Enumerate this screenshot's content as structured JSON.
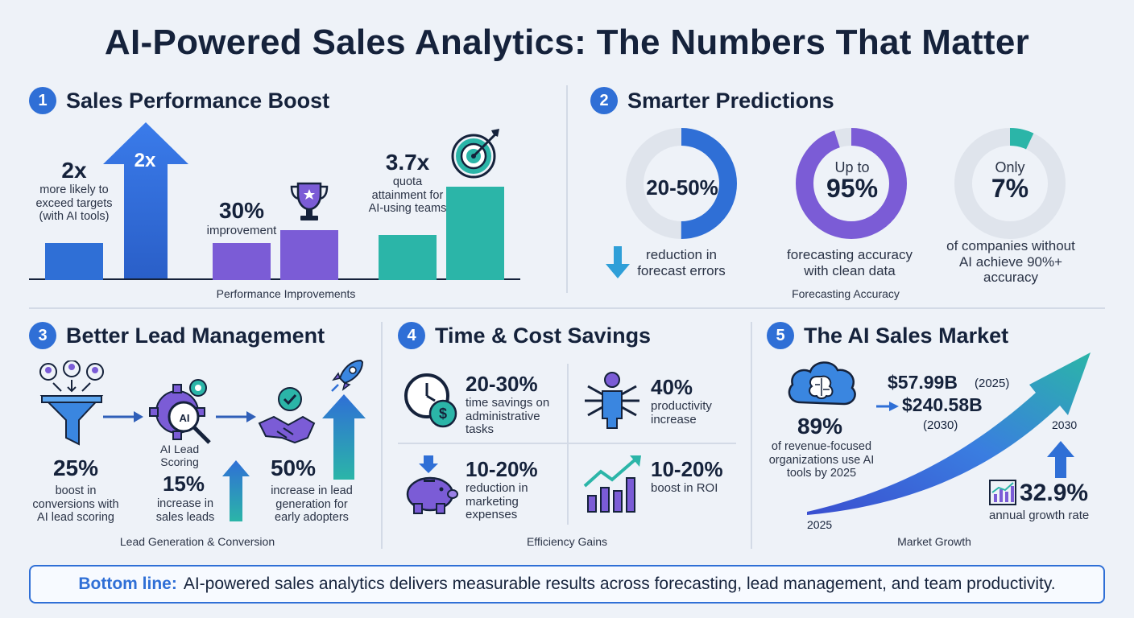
{
  "title": "AI-Powered Sales Analytics: The Numbers That Matter",
  "colors": {
    "blue": "#2f6fd6",
    "purple": "#7b5cd6",
    "teal": "#2bb5a8",
    "navy": "#15223b",
    "background": "#eef2f8"
  },
  "sections": {
    "s1": {
      "num": "1",
      "title": "Sales Performance Boost",
      "stat1": {
        "value": "2x",
        "desc": "more likely to exceed targets (with AI tools)",
        "arrow_label": "2x"
      },
      "stat2": {
        "value": "30%",
        "desc": "improvement"
      },
      "stat3": {
        "value": "3.7x",
        "desc": "quota attainment for AI-using teams"
      },
      "caption": "Performance Improvements",
      "icons": [
        "trophy-icon",
        "target-icon"
      ]
    },
    "s2": {
      "num": "2",
      "title": "Smarter Predictions",
      "donuts": [
        {
          "value": "20-50%",
          "desc": "reduction in forecast errors",
          "fraction": 0.5,
          "color": "#2f6fd6"
        },
        {
          "prefix": "Up to",
          "value": "95%",
          "desc": "forecasting accuracy with clean data",
          "fraction": 0.95,
          "color": "#7b5cd6"
        },
        {
          "prefix": "Only",
          "value": "7%",
          "desc": "of companies without AI achieve 90%+ accuracy",
          "fraction": 0.07,
          "color": "#2bb5a8"
        }
      ],
      "caption": "Forecasting Accuracy"
    },
    "s3": {
      "num": "3",
      "title": "Better Lead Management",
      "stat1": {
        "value": "25%",
        "desc": "boost in conversions with AI lead scoring"
      },
      "scoring_label": "AI Lead Scoring",
      "ai_badge": "AI",
      "stat2": {
        "value": "15%",
        "desc": "increase in sales leads"
      },
      "stat3": {
        "value": "50%",
        "desc": "increase in lead generation for early adopters"
      },
      "caption": "Lead Generation & Conversion"
    },
    "s4": {
      "num": "4",
      "title": "Time & Cost Savings",
      "stats": [
        {
          "value": "20-30%",
          "desc": "time savings on administrative tasks",
          "icon": "clock-dollar-icon"
        },
        {
          "value": "40%",
          "desc": "productivity increase",
          "icon": "multitasking-person-icon"
        },
        {
          "value": "10-20%",
          "desc": "reduction in marketing expenses",
          "icon": "piggy-bank-icon"
        },
        {
          "value": "10-20%",
          "desc": "boost in ROI",
          "icon": "growth-chart-icon"
        }
      ],
      "caption": "Efficiency Gains"
    },
    "s5": {
      "num": "5",
      "title": "The AI Sales Market",
      "market_2025": "$57.99B",
      "market_2025_year": "(2025)",
      "market_2030": "$240.58B",
      "market_2030_year": "(2030)",
      "adoption_value": "89%",
      "adoption_desc": "of revenue-focused organizations use AI tools by 2025",
      "year_start": "2025",
      "year_end": "2030",
      "growth_value": "32.9%",
      "growth_desc": "annual growth rate",
      "caption": "Market Growth"
    }
  },
  "bottom": {
    "label": "Bottom line:",
    "text": "AI-powered sales analytics delivers measurable results across forecasting, lead management, and team productivity."
  }
}
